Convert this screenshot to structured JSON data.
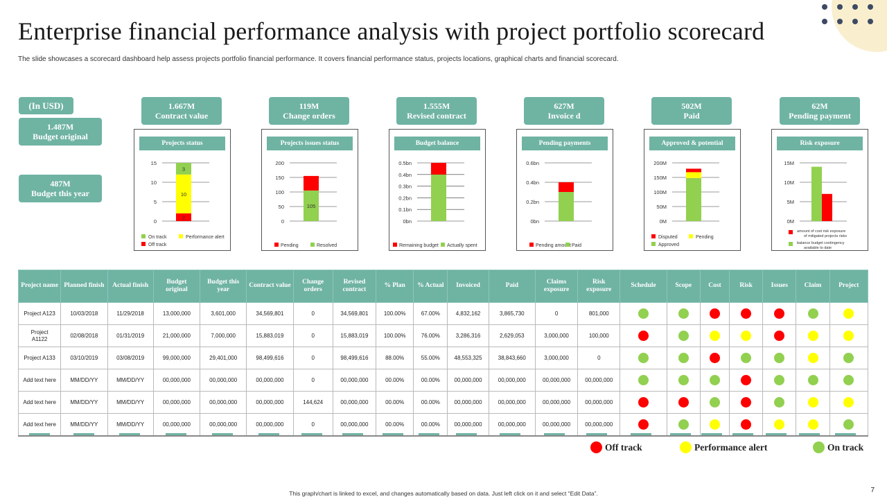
{
  "title": "Enterprise financial performance analysis with project portfolio scorecard",
  "subtitle": "The slide showcases a scorecard dashboard help assess projects portfolio financial performance. It covers financial performance status, projects locations, graphical charts and financial scorecard.",
  "colors": {
    "teal": "#6fb3a3",
    "green": "#92d050",
    "yellow": "#ffff00",
    "red": "#ff0000",
    "accent_bg": "#f9efcf",
    "dots": "#3e4a63"
  },
  "left_cards": {
    "currency": "(In USD)",
    "budget_original": {
      "value": "1.487M",
      "label": "Budget original"
    },
    "budget_this_year": {
      "value": "487M",
      "label": "Budget this year"
    }
  },
  "kpis": [
    {
      "value": "1.667M",
      "label": "Contract value"
    },
    {
      "value": "119M",
      "label": "Change orders"
    },
    {
      "value": "1.555M",
      "label": "Revised  contract"
    },
    {
      "value": "627M",
      "label": "Invoice d"
    },
    {
      "value": "502M",
      "label": "Paid"
    },
    {
      "value": "62M",
      "label": "Pending payment"
    }
  ],
  "chart_data": [
    {
      "type": "bar",
      "title": "Projects status",
      "stacked": true,
      "categories": [
        ""
      ],
      "ylim": [
        0,
        15
      ],
      "yticks": [
        "15",
        "10",
        "5",
        "0"
      ],
      "series": [
        {
          "name": "Off track",
          "color": "#ff0000",
          "values": [
            2
          ],
          "label": "2"
        },
        {
          "name": "Performance alert",
          "color": "#ffff00",
          "values": [
            10
          ],
          "label": "10"
        },
        {
          "name": "On track",
          "color": "#92d050",
          "values": [
            3
          ],
          "label": "3"
        }
      ],
      "legend": [
        "On track",
        "Performance alert",
        "Off track"
      ]
    },
    {
      "type": "bar",
      "title": "Projects issues status",
      "stacked": true,
      "categories": [
        ""
      ],
      "ylim": [
        0,
        200
      ],
      "yticks": [
        "200",
        "150",
        "100",
        "50",
        "0"
      ],
      "series": [
        {
          "name": "Resolved",
          "color": "#92d050",
          "values": [
            105
          ],
          "label": "105"
        },
        {
          "name": "Pending",
          "color": "#ff0000",
          "values": [
            50
          ],
          "label": ""
        }
      ],
      "legend": [
        "Pending",
        "Resolved"
      ]
    },
    {
      "type": "bar",
      "title": "Budget balance",
      "stacked": true,
      "categories": [
        ""
      ],
      "ylim": [
        0,
        0.5
      ],
      "yticks": [
        "0.5bn",
        "0.4bn",
        "0.3bn",
        "0.2bn",
        "0.1bn",
        "0bn"
      ],
      "series": [
        {
          "name": "Actually spent",
          "color": "#92d050",
          "values": [
            0.4
          ],
          "label": ""
        },
        {
          "name": "Remaining budget",
          "color": "#ff0000",
          "values": [
            0.1
          ],
          "label": ""
        }
      ],
      "legend": [
        "Remaining budget",
        "Actually spent"
      ]
    },
    {
      "type": "bar",
      "title": "Pending payments",
      "stacked": true,
      "categories": [
        ""
      ],
      "ylim": [
        0,
        0.6
      ],
      "yticks": [
        "0.6bn",
        "0.4bn",
        "0.2bn",
        "0bn"
      ],
      "series": [
        {
          "name": "Paid",
          "color": "#92d050",
          "values": [
            0.3
          ],
          "label": ""
        },
        {
          "name": "Pending amount",
          "color": "#ff0000",
          "values": [
            0.1
          ],
          "label": ""
        }
      ],
      "legend": [
        "Pending amount",
        "Paid"
      ]
    },
    {
      "type": "bar",
      "title": "Approved & potential",
      "stacked": true,
      "categories": [
        ""
      ],
      "ylim": [
        0,
        200
      ],
      "yticks": [
        "200M",
        "150M",
        "100M",
        "50M",
        "0M"
      ],
      "series": [
        {
          "name": "Approved",
          "color": "#92d050",
          "values": [
            148
          ],
          "label": ""
        },
        {
          "name": "Pending",
          "color": "#ffff00",
          "values": [
            20
          ],
          "label": ""
        },
        {
          "name": "Disputed",
          "color": "#ff0000",
          "values": [
            12
          ],
          "label": ""
        }
      ],
      "legend": [
        "Disputed",
        "Pending",
        "Approved"
      ]
    },
    {
      "type": "bar",
      "title": "Risk exposure",
      "stacked": false,
      "categories": [
        ""
      ],
      "ylim": [
        0,
        15
      ],
      "yticks": [
        "15M",
        "10M",
        "5M",
        "0M"
      ],
      "series": [
        {
          "name": "balance budget contingency available to date",
          "color": "#92d050",
          "values": [
            14
          ],
          "label": ""
        },
        {
          "name": "amount of cost risk exposure of mitigated projects risks",
          "color": "#ff0000",
          "values": [
            7
          ],
          "label": ""
        }
      ],
      "legend": [
        "amount of cost risk exposure of mitigated projects risks",
        "balance budget contingency available to date"
      ]
    }
  ],
  "table": {
    "columns": [
      "Project name",
      "Planned finish",
      "Actual finish",
      "Budget original",
      "Budget this year",
      "Contract value",
      "Change orders",
      "Revised contract",
      "% Plan",
      "% Actual",
      "Invoiced",
      "Paid",
      "Claims exposure",
      "Risk exposure",
      "Schedule",
      "Scope",
      "Cost",
      "Risk",
      "Issues",
      "Claim",
      "Project"
    ],
    "rows": [
      {
        "cells": [
          "Project A123",
          "10/03/2018",
          "11/29/2018",
          "13,000,000",
          "3,601,000",
          "34,569,801",
          "0",
          "34,569,801",
          "100.00%",
          "67.00%",
          "4,832,162",
          "3,865,730",
          "0",
          "801,000"
        ],
        "status": [
          "green",
          "green",
          "red",
          "red",
          "red",
          "green",
          "yellow"
        ]
      },
      {
        "cells": [
          "Project A1122",
          "02/08/2018",
          "01/31/2019",
          "21,000,000",
          "7,000,000",
          "15,883,019",
          "0",
          "15,883,019",
          "100.00%",
          "76.00%",
          "3,286,316",
          "2,629,053",
          "3,000,000",
          "100,000"
        ],
        "status": [
          "red",
          "green",
          "yellow",
          "yellow",
          "red",
          "yellow",
          "yellow"
        ]
      },
      {
        "cells": [
          "Project A133",
          "03/10/2019",
          "03/08/2019",
          "99,000,000",
          "29,401,000",
          "98,499,616",
          "0",
          "98,499,616",
          "88.00%",
          "55.00%",
          "48,553,325",
          "38,843,660",
          "3,000,000",
          "0"
        ],
        "status": [
          "green",
          "green",
          "red",
          "green",
          "green",
          "yellow",
          "green"
        ]
      },
      {
        "cells": [
          "Add text here",
          "MM/DD/YY",
          "MM/DD/YY",
          "00,000,000",
          "00,000,000",
          "00,000,000",
          "0",
          "00,000,000",
          "00.00%",
          "00.00%",
          "00,000,000",
          "00,000,000",
          "00,000,000",
          "00,000,000"
        ],
        "status": [
          "green",
          "green",
          "green",
          "red",
          "green",
          "green",
          "green"
        ]
      },
      {
        "cells": [
          "Add text here",
          "MM/DD/YY",
          "MM/DD/YY",
          "00,000,000",
          "00,000,000",
          "00,000,000",
          "144,624",
          "00,000,000",
          "00.00%",
          "00.00%",
          "00,000,000",
          "00,000,000",
          "00,000,000",
          "00,000,000"
        ],
        "status": [
          "red",
          "red",
          "green",
          "red",
          "green",
          "yellow",
          "yellow"
        ]
      },
      {
        "cells": [
          "Add text here",
          "MM/DD/YY",
          "MM/DD/YY",
          "00,000,000",
          "00,000,000",
          "00,000,000",
          "0",
          "00,000,000",
          "00.00%",
          "00.00%",
          "00,000,000",
          "00,000,000",
          "00,000,000",
          "00,000,000"
        ],
        "status": [
          "red",
          "green",
          "yellow",
          "red",
          "yellow",
          "yellow",
          "green"
        ]
      }
    ]
  },
  "legend": {
    "off_track": "Off track",
    "performance_alert": "Performance alert",
    "on_track": "On track"
  },
  "footer": "This graph/chart is linked to excel, and changes automatically based on data. Just left click on it and select “Edit Data”.",
  "page_number": "7"
}
